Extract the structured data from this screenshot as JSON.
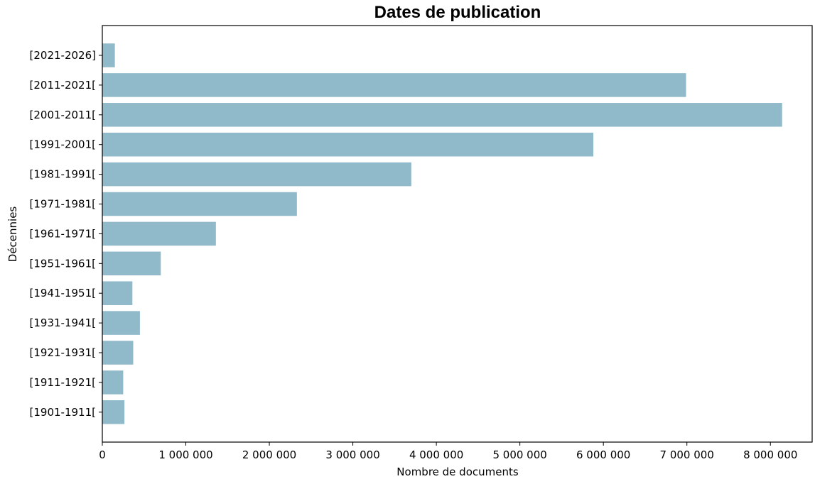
{
  "chart_data": {
    "type": "bar",
    "orientation": "horizontal",
    "title": "Dates de publication",
    "xlabel": "Nombre de documents",
    "ylabel": "Décennies",
    "xlim": [
      0,
      8500000
    ],
    "xticks": [
      0,
      1000000,
      2000000,
      3000000,
      4000000,
      5000000,
      6000000,
      7000000,
      8000000
    ],
    "xtick_labels": [
      "0",
      "1 000 000",
      "2 000 000",
      "3 000 000",
      "4 000 000",
      "5 000 000",
      "6 000 000",
      "7 000 000",
      "8 000 000"
    ],
    "categories": [
      "[2021-2026]",
      "[2011-2021[",
      "[2001-2011[",
      "[1991-2001[",
      "[1981-1991[",
      "[1971-1981[",
      "[1961-1971[",
      "[1951-1961[",
      "[1941-1951[",
      "[1931-1941[",
      "[1921-1931[",
      "[1911-1921[",
      "[1901-1911["
    ],
    "values": [
      150000,
      6990000,
      8140000,
      5880000,
      3700000,
      2330000,
      1360000,
      700000,
      360000,
      450000,
      370000,
      250000,
      265000
    ],
    "bar_color": "#90b9c9",
    "grid": false,
    "legend": "none"
  }
}
